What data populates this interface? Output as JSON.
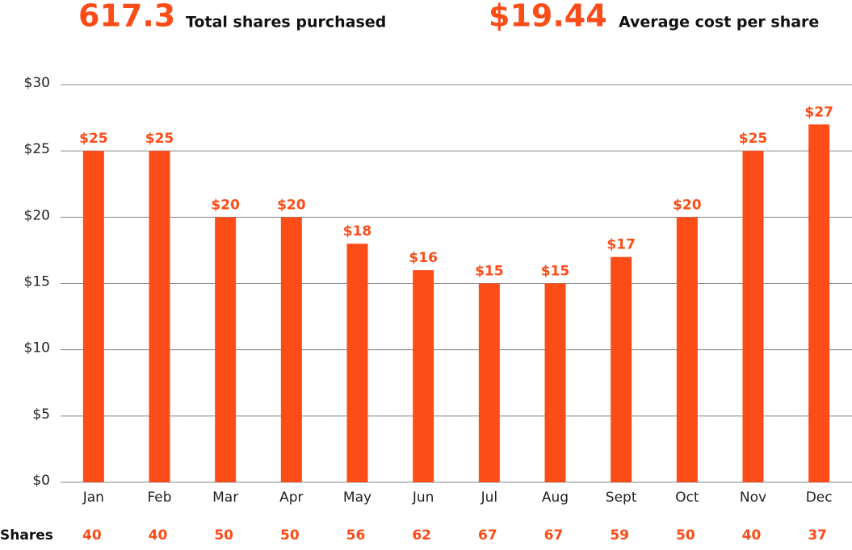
{
  "chart_data": {
    "type": "bar",
    "stats": [
      {
        "value": "617.3",
        "caption": "Total shares purchased"
      },
      {
        "value": "$19.44",
        "caption": "Average cost per share"
      }
    ],
    "categories": [
      "Jan",
      "Feb",
      "Mar",
      "Apr",
      "May",
      "Jun",
      "Jul",
      "Aug",
      "Sept",
      "Oct",
      "Nov",
      "Dec"
    ],
    "values": [
      25,
      25,
      20,
      20,
      18,
      16,
      15,
      15,
      17,
      20,
      25,
      27
    ],
    "value_labels": [
      "$25",
      "$25",
      "$20",
      "$20",
      "$18",
      "$16",
      "$15",
      "$15",
      "$17",
      "$20",
      "$25",
      "$27"
    ],
    "color": "#fc4c17",
    "ylim": [
      0,
      30
    ],
    "yticks": [
      {
        "value": 0,
        "label": "$0"
      },
      {
        "value": 5,
        "label": "$5"
      },
      {
        "value": 10,
        "label": "$10"
      },
      {
        "value": 15,
        "label": "$15"
      },
      {
        "value": 20,
        "label": "$20"
      },
      {
        "value": 25,
        "label": "$25"
      },
      {
        "value": 30,
        "label": "$30"
      }
    ],
    "grid": true,
    "shares": {
      "label": "Shares",
      "values": [
        40,
        40,
        50,
        50,
        56,
        62,
        67,
        67,
        59,
        50,
        40,
        37
      ]
    }
  }
}
